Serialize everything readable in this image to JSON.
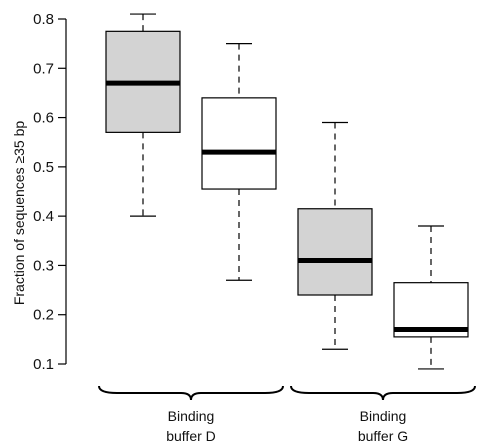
{
  "chart_data": {
    "type": "boxplot",
    "ylabel": "Fraction of sequences ≥35 bp",
    "ylim": [
      0.1,
      0.8
    ],
    "yticks": [
      0.1,
      0.2,
      0.3,
      0.4,
      0.5,
      0.6,
      0.7,
      0.8
    ],
    "ytick_labels": [
      "0.1",
      "0.2",
      "0.3",
      "0.4",
      "0.5",
      "0.6",
      "0.7",
      "0.8"
    ],
    "grid": false,
    "colors": {
      "gray_box": "#d3d3d3",
      "white_box": "#ffffff",
      "stroke": "#000000"
    },
    "groups": [
      {
        "label_line1": "Binding",
        "label_line2": "buffer D"
      },
      {
        "label_line1": "Binding",
        "label_line2": "buffer G"
      }
    ],
    "boxes": [
      {
        "group": 0,
        "fill": "gray",
        "min": 0.4,
        "q1": 0.57,
        "median": 0.67,
        "q3": 0.775,
        "max": 0.81
      },
      {
        "group": 0,
        "fill": "white",
        "min": 0.27,
        "q1": 0.455,
        "median": 0.53,
        "q3": 0.64,
        "max": 0.75
      },
      {
        "group": 1,
        "fill": "gray",
        "min": 0.13,
        "q1": 0.24,
        "median": 0.31,
        "q3": 0.415,
        "max": 0.59
      },
      {
        "group": 1,
        "fill": "white",
        "min": 0.09,
        "q1": 0.155,
        "median": 0.17,
        "q3": 0.265,
        "max": 0.38
      }
    ]
  }
}
